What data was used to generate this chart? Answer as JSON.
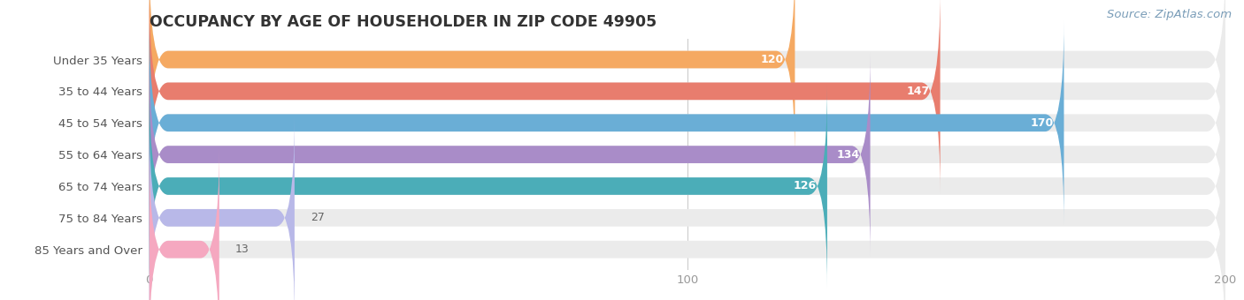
{
  "title": "OCCUPANCY BY AGE OF HOUSEHOLDER IN ZIP CODE 49905",
  "source": "Source: ZipAtlas.com",
  "categories": [
    "Under 35 Years",
    "35 to 44 Years",
    "45 to 54 Years",
    "55 to 64 Years",
    "65 to 74 Years",
    "75 to 84 Years",
    "85 Years and Over"
  ],
  "values": [
    120,
    147,
    170,
    134,
    126,
    27,
    13
  ],
  "bar_colors": [
    "#F5A962",
    "#E87D6E",
    "#6AAED6",
    "#A98CC8",
    "#4BADB8",
    "#B8B8E8",
    "#F5A8C0"
  ],
  "bar_bg_color": "#EBEBEB",
  "xlim": [
    0,
    200
  ],
  "xticks": [
    0,
    100,
    200
  ],
  "bar_height": 0.55,
  "background_color": "#FFFFFF",
  "title_fontsize": 12.5,
  "label_fontsize": 9.5,
  "value_fontsize": 9,
  "source_fontsize": 9.5,
  "title_color": "#333333",
  "label_color": "#555555",
  "value_color_inside": "#FFFFFF",
  "value_color_outside": "#666666",
  "tick_color": "#999999",
  "inside_threshold": 30
}
